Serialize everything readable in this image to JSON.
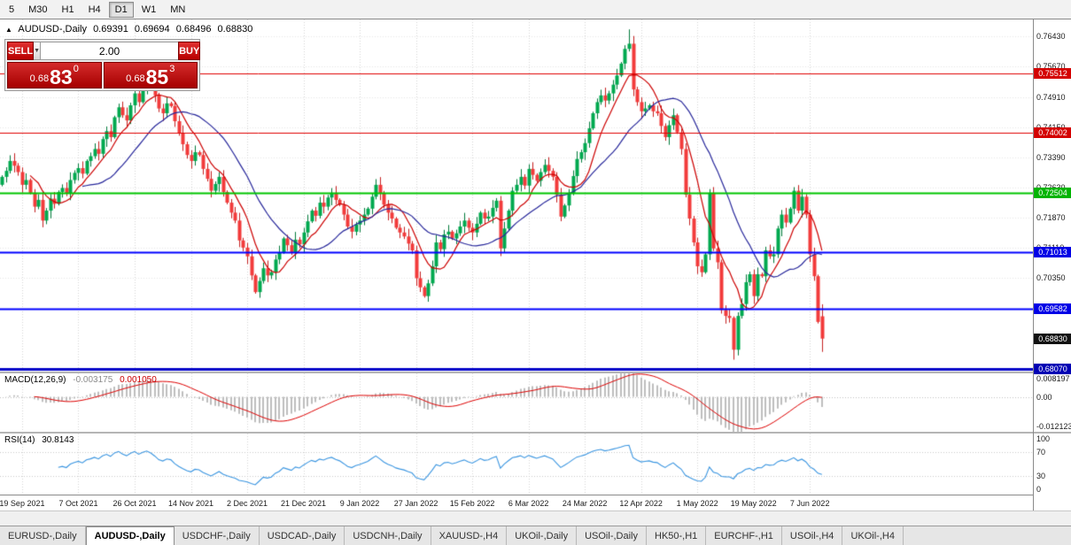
{
  "toolbar": {
    "timeframes": [
      "5",
      "M30",
      "H1",
      "H4",
      "D1",
      "W1",
      "MN"
    ],
    "active_timeframe": "D1"
  },
  "chart": {
    "marker": "▲",
    "title": "AUDUSD-,Daily",
    "open": "0.69391",
    "high": "0.69694",
    "low": "0.68496",
    "close": "0.68830"
  },
  "trade_widget": {
    "sell_label": "SELL",
    "buy_label": "BUY",
    "volume": "2.00",
    "dropdown_icon": "▼",
    "sell_price_small": "0.68",
    "sell_price_big": "83",
    "sell_price_sup": "0",
    "buy_price_small": "0.68",
    "buy_price_big": "85",
    "buy_price_sup": "3"
  },
  "price_axis": {
    "ticks": [
      "0.76430",
      "0.75670",
      "0.74910",
      "0.74150",
      "0.73390",
      "0.72630",
      "0.71870",
      "0.71110",
      "0.70350",
      "0.69590"
    ]
  },
  "hlines": [
    {
      "price": 0.75512,
      "label": "0.75512",
      "color": "#e00000",
      "bg": "#d40000",
      "width": 1
    },
    {
      "price": 0.74002,
      "label": "0.74002",
      "color": "#e00000",
      "bg": "#d40000",
      "width": 1
    },
    {
      "price": 0.72504,
      "label": "0.72504",
      "color": "#00c300",
      "bg": "#00b400",
      "width": 2
    },
    {
      "price": 0.71013,
      "label": "0.71013",
      "color": "#0000ff",
      "bg": "#0000e6",
      "width": 2
    },
    {
      "price": 0.69582,
      "label": "0.69582",
      "color": "#0000ff",
      "bg": "#0000e6",
      "width": 2
    },
    {
      "price": 0.6807,
      "label": "0.68070",
      "color": "#0000c8",
      "bg": "#0000b4",
      "width": 3
    }
  ],
  "current_price": {
    "price": 0.6883,
    "label": "0.68830",
    "bg": "#121212"
  },
  "macd_panel": {
    "name": "MACD(12,26,9)",
    "value_main": "-0.003175",
    "value_signal": "0.001050",
    "axis_max": "0.008197",
    "axis_zero": "0.00",
    "axis_min": "-0.012123",
    "range_max": 0.008197,
    "range_min": -0.012123,
    "histogram_color": "#bdbdbd",
    "signal_color": "#dd0000"
  },
  "rsi_panel": {
    "name": "RSI(14)",
    "value": "30.8143",
    "levels": [
      "100",
      "70",
      "30",
      "0"
    ],
    "line_color": "#3a95e0"
  },
  "date_axis": {
    "labels": [
      "19 Sep 2021",
      "7 Oct 2021",
      "26 Oct 2021",
      "14 Nov 2021",
      "2 Dec 2021",
      "21 Dec 2021",
      "9 Jan 2022",
      "27 Jan 2022",
      "15 Feb 2022",
      "6 Mar 2022",
      "24 Mar 2022",
      "12 Apr 2022",
      "1 May 2022",
      "19 May 2022",
      "7 Jun 2022"
    ]
  },
  "tabs": {
    "items": [
      "EURUSD-,Daily",
      "AUDUSD-,Daily",
      "USDCHF-,Daily",
      "USDCAD-,Daily",
      "USDCNH-,Daily",
      "XAUUSD-,H4",
      "UKOil-,Daily",
      "USOil-,Daily",
      "HK50-,H1",
      "EURCHF-,H1",
      "USOil-,H4",
      "UKOil-,H4"
    ],
    "active_index": 1
  },
  "chart_data": {
    "type": "candlestick",
    "symbol": "AUDUSD",
    "timeframe": "Daily",
    "price_range": [
      0.68,
      0.7686
    ],
    "total_slots": 257,
    "x_labels": [
      "19 Sep 2021",
      "7 Oct 2021",
      "26 Oct 2021",
      "14 Nov 2021",
      "2 Dec 2021",
      "21 Dec 2021",
      "9 Jan 2022",
      "27 Jan 2022",
      "15 Feb 2022",
      "6 Mar 2022",
      "24 Mar 2022",
      "12 Apr 2022",
      "1 May 2022",
      "19 May 2022",
      "7 Jun 2022"
    ],
    "x_label_positions": [
      5,
      19,
      33,
      47,
      61,
      75,
      89,
      103,
      117,
      131,
      145,
      159,
      173,
      187,
      201
    ],
    "closes": [
      0.729,
      0.7305,
      0.733,
      0.7318,
      0.7302,
      0.727,
      0.7282,
      0.725,
      0.7215,
      0.7232,
      0.718,
      0.7205,
      0.7235,
      0.7222,
      0.7252,
      0.7262,
      0.7248,
      0.7282,
      0.73,
      0.7312,
      0.7298,
      0.733,
      0.7342,
      0.736,
      0.7348,
      0.7385,
      0.7405,
      0.739,
      0.744,
      0.7465,
      0.7445,
      0.7432,
      0.747,
      0.75,
      0.7478,
      0.7512,
      0.7535,
      0.752,
      0.7495,
      0.7462,
      0.745,
      0.7475,
      0.7468,
      0.743,
      0.74,
      0.7372,
      0.7345,
      0.733,
      0.7352,
      0.7345,
      0.731,
      0.7285,
      0.7255,
      0.7272,
      0.729,
      0.7252,
      0.7225,
      0.72,
      0.718,
      0.713,
      0.7112,
      0.709,
      0.7042,
      0.7,
      0.7028,
      0.706,
      0.7042,
      0.705,
      0.7082,
      0.71,
      0.7135,
      0.7118,
      0.71,
      0.7132,
      0.712,
      0.715,
      0.7178,
      0.7205,
      0.7192,
      0.7225,
      0.7215,
      0.7238,
      0.725,
      0.7232,
      0.722,
      0.7195,
      0.7165,
      0.7152,
      0.717,
      0.718,
      0.7195,
      0.721,
      0.724,
      0.727,
      0.7248,
      0.722,
      0.72,
      0.7185,
      0.7162,
      0.715,
      0.714,
      0.7122,
      0.7105,
      0.7035,
      0.7012,
      0.699,
      0.7022,
      0.7065,
      0.7125,
      0.7108,
      0.7145,
      0.7152,
      0.7135,
      0.7148,
      0.7165,
      0.718,
      0.7162,
      0.715,
      0.7172,
      0.72,
      0.7185,
      0.719,
      0.7212,
      0.723,
      0.711,
      0.716,
      0.7205,
      0.7255,
      0.727,
      0.729,
      0.7268,
      0.731,
      0.7295,
      0.728,
      0.7302,
      0.732,
      0.7305,
      0.729,
      0.7245,
      0.719,
      0.7218,
      0.725,
      0.7292,
      0.7335,
      0.7352,
      0.7375,
      0.7412,
      0.745,
      0.7478,
      0.7495,
      0.7482,
      0.75,
      0.7522,
      0.7545,
      0.7575,
      0.7612,
      0.7625,
      0.751,
      0.7478,
      0.7455,
      0.7462,
      0.747,
      0.7455,
      0.745,
      0.7418,
      0.739,
      0.742,
      0.7445,
      0.7402,
      0.736,
      0.7245,
      0.7185,
      0.7125,
      0.7065,
      0.705,
      0.7095,
      0.725,
      0.711,
      0.7075,
      0.6955,
      0.694,
      0.6935,
      0.6855,
      0.694,
      0.697,
      0.7025,
      0.7045,
      0.699,
      0.7045,
      0.704,
      0.7105,
      0.709,
      0.7095,
      0.716,
      0.7195,
      0.7175,
      0.721,
      0.7255,
      0.7205,
      0.724,
      0.7195,
      0.7095,
      0.704,
      0.6925,
      0.6883
    ],
    "last_candle": {
      "open": 0.69391,
      "high": 0.69694,
      "low": 0.68496,
      "close": 0.6883
    },
    "wick_overrides": [
      {
        "index": 156,
        "high": 0.7661
      },
      {
        "index": 182,
        "low": 0.683
      }
    ],
    "up_color": "#00a94f",
    "down_color": "#f23b3b",
    "overlays": [
      {
        "name": "ma-fast",
        "type": "sma",
        "period": 8,
        "color": "#cc0000"
      },
      {
        "name": "ma-slow",
        "type": "sma",
        "period": 21,
        "color": "#26269a"
      }
    ],
    "indicators": [
      {
        "name": "MACD",
        "params": [
          12,
          26,
          9
        ],
        "current_main": -0.003175,
        "current_signal": 0.00105
      },
      {
        "name": "RSI",
        "params": [
          14
        ],
        "current": 30.8143
      }
    ]
  }
}
